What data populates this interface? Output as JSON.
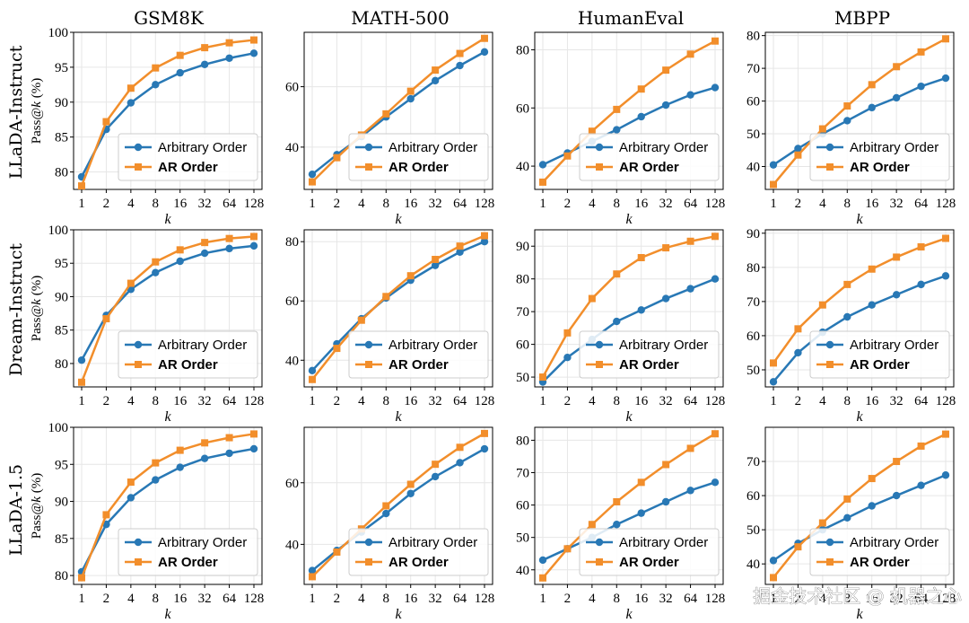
{
  "figure": {
    "col_titles": [
      "GSM8K",
      "MATH-500",
      "HumanEval",
      "MBPP"
    ],
    "row_titles": [
      "LLaDA-Instruct",
      "Dream-Instruct",
      "LLaDA-1.5"
    ],
    "ylabel_prefix": "Pass@",
    "ylabel_var": "k",
    "ylabel_suffix": " (%)",
    "xlabel": "k",
    "legend": [
      "Arbitrary Order",
      "AR Order"
    ],
    "colors": {
      "arbitrary": "#2878b5",
      "ar": "#f28e2b",
      "grid": "#e6e6e6"
    },
    "watermark": "掘金技术社区 @ 机器之心"
  },
  "chart_data": [
    {
      "type": "line",
      "row": "LLaDA-Instruct",
      "title": "GSM8K",
      "xlabel": "k",
      "ylabel": "Pass@k (%)",
      "categories": [
        "1",
        "2",
        "4",
        "8",
        "16",
        "32",
        "64",
        "128"
      ],
      "ylim": [
        77.5,
        100
      ],
      "yticks": [
        80,
        85,
        90,
        95,
        100
      ],
      "series": [
        {
          "name": "Arbitrary Order",
          "values": [
            79.3,
            86.1,
            89.9,
            92.5,
            94.2,
            95.4,
            96.3,
            97.0
          ]
        },
        {
          "name": "AR Order",
          "values": [
            78.0,
            87.2,
            92.0,
            94.9,
            96.7,
            97.8,
            98.5,
            98.9
          ]
        }
      ]
    },
    {
      "type": "line",
      "row": "LLaDA-Instruct",
      "title": "MATH-500",
      "xlabel": "k",
      "ylabel": "Pass@k (%)",
      "categories": [
        "1",
        "2",
        "4",
        "8",
        "16",
        "32",
        "64",
        "128"
      ],
      "ylim": [
        26,
        78
      ],
      "yticks": [
        40,
        60
      ],
      "series": [
        {
          "name": "Arbitrary Order",
          "values": [
            31,
            37.5,
            43.5,
            50,
            56,
            62,
            67,
            71.5
          ]
        },
        {
          "name": "AR Order",
          "values": [
            28.5,
            36.5,
            44,
            51,
            58.5,
            65.5,
            71,
            76
          ]
        }
      ]
    },
    {
      "type": "line",
      "row": "LLaDA-Instruct",
      "title": "HumanEval",
      "xlabel": "k",
      "ylabel": "Pass@k (%)",
      "categories": [
        "1",
        "2",
        "4",
        "8",
        "16",
        "32",
        "64",
        "128"
      ],
      "ylim": [
        32,
        86
      ],
      "yticks": [
        40,
        60,
        80
      ],
      "series": [
        {
          "name": "Arbitrary Order",
          "values": [
            40.5,
            44.5,
            48.5,
            52.5,
            57,
            61,
            64.5,
            67
          ]
        },
        {
          "name": "AR Order",
          "values": [
            34.5,
            43.5,
            52,
            59.5,
            66.5,
            73,
            78.5,
            83
          ]
        }
      ]
    },
    {
      "type": "line",
      "row": "LLaDA-Instruct",
      "title": "MBPP",
      "xlabel": "k",
      "ylabel": "Pass@k (%)",
      "categories": [
        "1",
        "2",
        "4",
        "8",
        "16",
        "32",
        "64",
        "128"
      ],
      "ylim": [
        33,
        81
      ],
      "yticks": [
        40,
        50,
        60,
        70,
        80
      ],
      "series": [
        {
          "name": "Arbitrary Order",
          "values": [
            40.5,
            45.5,
            50,
            54,
            58,
            61,
            64.5,
            67
          ]
        },
        {
          "name": "AR Order",
          "values": [
            34.5,
            43.5,
            51.5,
            58.5,
            65,
            70.5,
            75,
            79
          ]
        }
      ]
    },
    {
      "type": "line",
      "row": "Dream-Instruct",
      "title": "GSM8K",
      "xlabel": "k",
      "ylabel": "Pass@k (%)",
      "categories": [
        "1",
        "2",
        "4",
        "8",
        "16",
        "32",
        "64",
        "128"
      ],
      "ylim": [
        76.5,
        100
      ],
      "yticks": [
        80,
        85,
        90,
        95,
        100
      ],
      "series": [
        {
          "name": "Arbitrary Order",
          "values": [
            80.5,
            87.2,
            91.1,
            93.6,
            95.3,
            96.5,
            97.2,
            97.6
          ]
        },
        {
          "name": "AR Order",
          "values": [
            77.2,
            86.7,
            92.0,
            95.2,
            97.0,
            98.1,
            98.7,
            99.0
          ]
        }
      ]
    },
    {
      "type": "line",
      "row": "Dream-Instruct",
      "title": "MATH-500",
      "xlabel": "k",
      "ylabel": "Pass@k (%)",
      "categories": [
        "1",
        "2",
        "4",
        "8",
        "16",
        "32",
        "64",
        "128"
      ],
      "ylim": [
        31,
        84
      ],
      "yticks": [
        40,
        60,
        80
      ],
      "series": [
        {
          "name": "Arbitrary Order",
          "values": [
            36.5,
            45.5,
            54,
            61,
            67,
            72,
            76.5,
            80
          ]
        },
        {
          "name": "AR Order",
          "values": [
            33.5,
            44,
            53.5,
            61.5,
            68.5,
            74,
            78.5,
            82
          ]
        }
      ]
    },
    {
      "type": "line",
      "row": "Dream-Instruct",
      "title": "HumanEval",
      "xlabel": "k",
      "ylabel": "Pass@k (%)",
      "categories": [
        "1",
        "2",
        "4",
        "8",
        "16",
        "32",
        "64",
        "128"
      ],
      "ylim": [
        47,
        95
      ],
      "yticks": [
        50,
        60,
        70,
        80,
        90
      ],
      "series": [
        {
          "name": "Arbitrary Order",
          "values": [
            48.5,
            56,
            61.5,
            67,
            70.5,
            74,
            77,
            80
          ]
        },
        {
          "name": "AR Order",
          "values": [
            50,
            63.5,
            74,
            81.5,
            86.5,
            89.5,
            91.5,
            93
          ]
        }
      ]
    },
    {
      "type": "line",
      "row": "Dream-Instruct",
      "title": "MBPP",
      "xlabel": "k",
      "ylabel": "Pass@k (%)",
      "categories": [
        "1",
        "2",
        "4",
        "8",
        "16",
        "32",
        "64",
        "128"
      ],
      "ylim": [
        45,
        91
      ],
      "yticks": [
        50,
        60,
        70,
        80,
        90
      ],
      "series": [
        {
          "name": "Arbitrary Order",
          "values": [
            46.5,
            55,
            61,
            65.5,
            69,
            72,
            75,
            77.5
          ]
        },
        {
          "name": "AR Order",
          "values": [
            52,
            62,
            69,
            75,
            79.5,
            83,
            86,
            88.5
          ]
        }
      ]
    },
    {
      "type": "line",
      "row": "LLaDA-1.5",
      "title": "GSM8K",
      "xlabel": "k",
      "ylabel": "Pass@k (%)",
      "categories": [
        "1",
        "2",
        "4",
        "8",
        "16",
        "32",
        "64",
        "128"
      ],
      "ylim": [
        78.8,
        100
      ],
      "yticks": [
        80,
        85,
        90,
        95,
        100
      ],
      "series": [
        {
          "name": "Arbitrary Order",
          "values": [
            80.5,
            86.9,
            90.5,
            92.9,
            94.6,
            95.8,
            96.5,
            97.1
          ]
        },
        {
          "name": "AR Order",
          "values": [
            79.7,
            88.2,
            92.6,
            95.2,
            96.9,
            97.9,
            98.6,
            99.1
          ]
        }
      ]
    },
    {
      "type": "line",
      "row": "LLaDA-1.5",
      "title": "MATH-500",
      "xlabel": "k",
      "ylabel": "Pass@k (%)",
      "categories": [
        "1",
        "2",
        "4",
        "8",
        "16",
        "32",
        "64",
        "128"
      ],
      "ylim": [
        27,
        78
      ],
      "yticks": [
        40,
        60
      ],
      "series": [
        {
          "name": "Arbitrary Order",
          "values": [
            31.5,
            38,
            44,
            50,
            56.5,
            62,
            66.5,
            71
          ]
        },
        {
          "name": "AR Order",
          "values": [
            29.5,
            37.5,
            45,
            52.5,
            59.5,
            66,
            71.5,
            76
          ]
        }
      ]
    },
    {
      "type": "line",
      "row": "LLaDA-1.5",
      "title": "HumanEval",
      "xlabel": "k",
      "ylabel": "Pass@k (%)",
      "categories": [
        "1",
        "2",
        "4",
        "8",
        "16",
        "32",
        "64",
        "128"
      ],
      "ylim": [
        35.5,
        84
      ],
      "yticks": [
        40,
        50,
        60,
        70,
        80
      ],
      "series": [
        {
          "name": "Arbitrary Order",
          "values": [
            43,
            46.5,
            50,
            54,
            57.5,
            61,
            64.5,
            67
          ]
        },
        {
          "name": "AR Order",
          "values": [
            37.5,
            46.5,
            54,
            61,
            67,
            72.5,
            77.5,
            82
          ]
        }
      ]
    },
    {
      "type": "line",
      "row": "LLaDA-1.5",
      "title": "MBPP",
      "xlabel": "k",
      "ylabel": "Pass@k (%)",
      "categories": [
        "1",
        "2",
        "4",
        "8",
        "16",
        "32",
        "64",
        "128"
      ],
      "ylim": [
        34,
        80
      ],
      "yticks": [
        40,
        50,
        60,
        70
      ],
      "series": [
        {
          "name": "Arbitrary Order",
          "values": [
            41,
            46,
            50,
            53.5,
            57,
            60,
            63,
            66
          ]
        },
        {
          "name": "AR Order",
          "values": [
            36,
            45,
            52,
            59,
            65,
            70,
            74.5,
            78
          ]
        }
      ]
    }
  ]
}
